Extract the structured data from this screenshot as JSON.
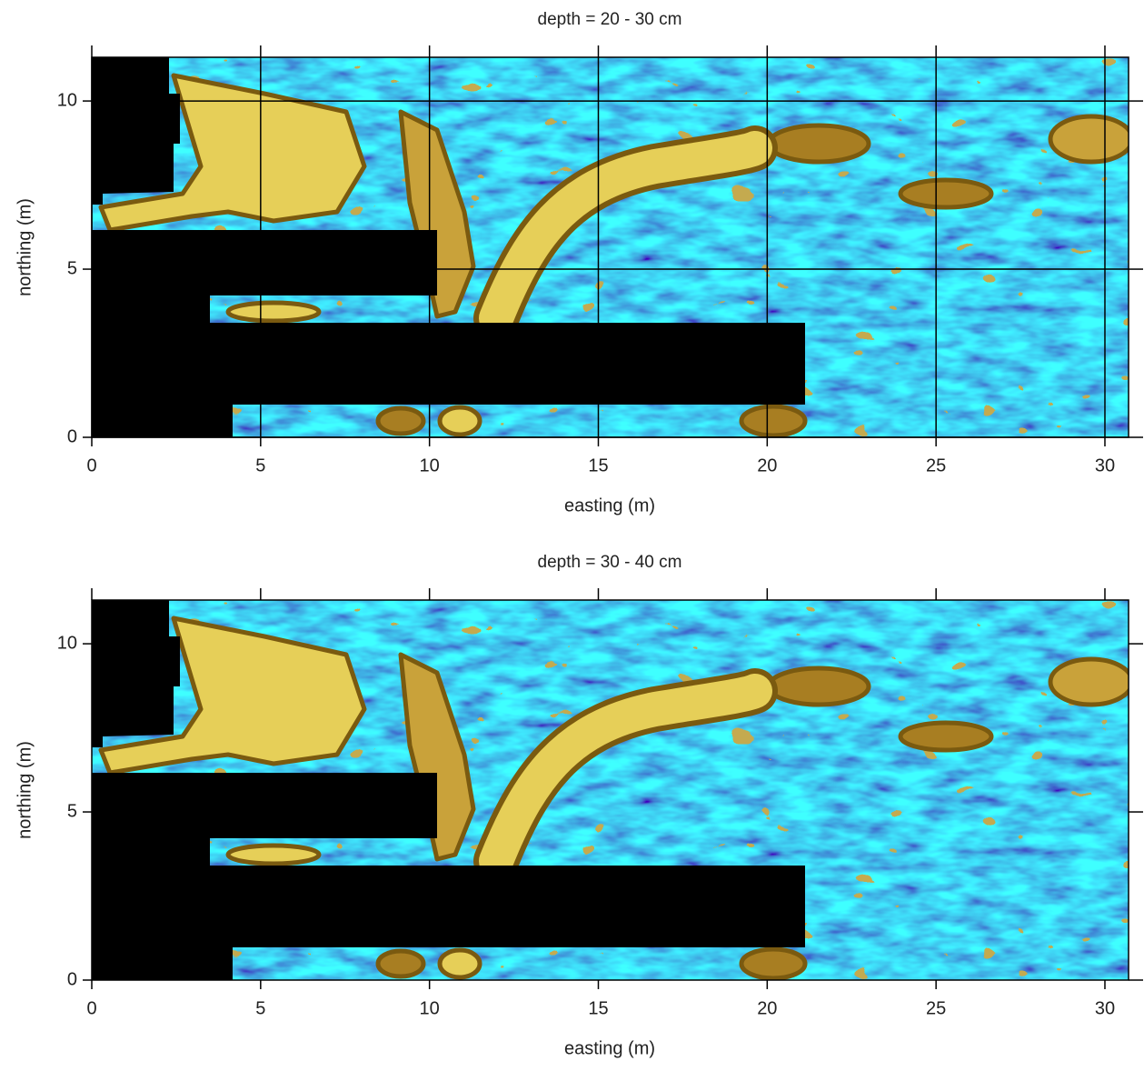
{
  "chart_data": [
    {
      "type": "heatmap",
      "title": "depth = 20 - 30 cm",
      "x_label": "easting (m)",
      "y_label": "northing (m)",
      "xlim": [
        0,
        30.7
      ],
      "ylim": [
        0,
        11.3
      ],
      "xticks": [
        0,
        5,
        10,
        15,
        20,
        25,
        30
      ],
      "yticks": [
        0,
        5,
        10
      ],
      "grid": true
    },
    {
      "type": "heatmap",
      "title": "depth = 30 - 40 cm",
      "x_label": "easting (m)",
      "y_label": "northing (m)",
      "xlim": [
        0,
        30.7
      ],
      "ylim": [
        0,
        11.3
      ],
      "xticks": [
        0,
        5,
        10,
        15,
        20,
        25,
        30
      ],
      "yticks": [
        0,
        5,
        10
      ],
      "grid": false
    }
  ]
}
